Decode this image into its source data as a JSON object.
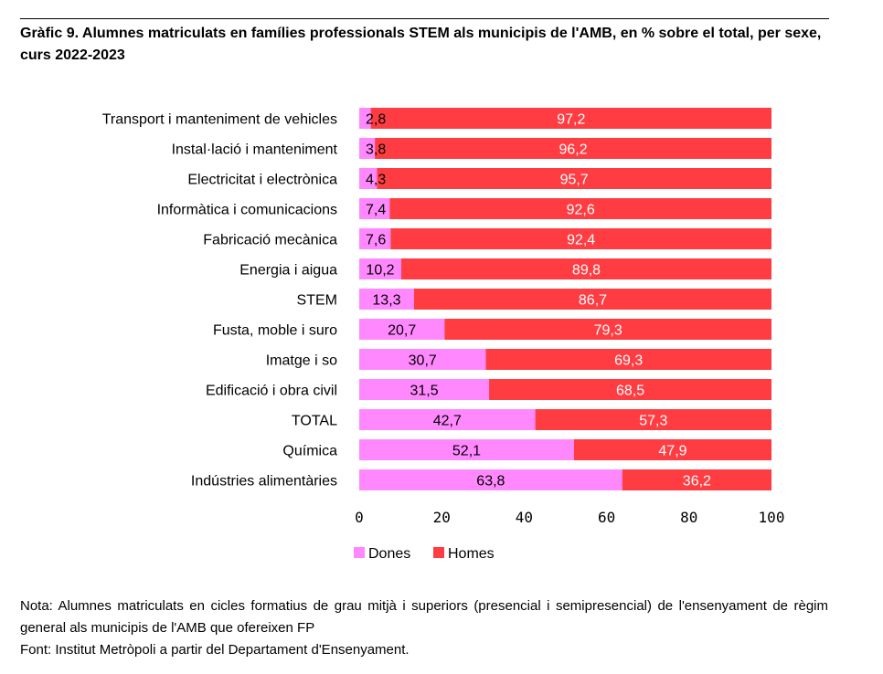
{
  "title": "Gràfic 9. Alumnes matriculats en famílies professionals STEM als municipis de l'AMB, en % sobre el total, per sexe, curs 2022-2023",
  "note": "Nota: Alumnes matriculats en cicles formatius de grau mitjà i superiors (presencial i semipresencial) de l'ensenyament de règim general als municipis de l'AMB que ofereixen FP",
  "source": "Font: Institut Metròpoli a partir del Departament d'Ensenyament.",
  "chart_data": {
    "type": "bar",
    "orientation": "horizontal",
    "stacked": true,
    "categories": [
      "Transport i manteniment de vehicles",
      "Instal·lació i manteniment",
      "Electricitat i electrònica",
      "Informàtica i comunicacions",
      "Fabricació mecànica",
      "Energia i aigua",
      "STEM",
      "Fusta, moble i suro",
      "Imatge i so",
      "Edificació i obra civil",
      "TOTAL",
      "Química",
      "Indústries alimentàries"
    ],
    "series": [
      {
        "name": "Dones",
        "color": "#ff88ff",
        "values": [
          2.8,
          3.8,
          4.3,
          7.4,
          7.6,
          10.2,
          13.3,
          20.7,
          30.7,
          31.5,
          42.7,
          52.1,
          63.8
        ],
        "labels": [
          "2,8",
          "3,8",
          "4,3",
          "7,4",
          "7,6",
          "10,2",
          "13,3",
          "20,7",
          "30,7",
          "31,5",
          "42,7",
          "52,1",
          "63,8"
        ]
      },
      {
        "name": "Homes",
        "color": "#ff3c41",
        "values": [
          97.2,
          96.2,
          95.7,
          92.6,
          92.4,
          89.8,
          86.7,
          79.3,
          69.3,
          68.5,
          57.3,
          47.9,
          36.2
        ],
        "labels": [
          "97,2",
          "96,2",
          "95,7",
          "92,6",
          "92,4",
          "89,8",
          "86,7",
          "79,3",
          "69,3",
          "68,5",
          "57,3",
          "47,9",
          "36,2"
        ]
      }
    ],
    "xlim": [
      0,
      100
    ],
    "xticks": [
      0,
      20,
      40,
      60,
      80,
      100
    ],
    "xtick_labels": [
      "0",
      "20",
      "40",
      "60",
      "80",
      "100"
    ],
    "legend": "bottom",
    "grid": false
  }
}
